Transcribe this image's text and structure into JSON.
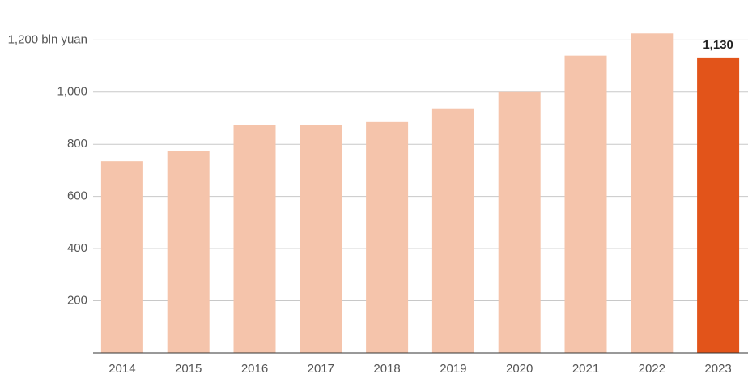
{
  "chart_data": {
    "type": "bar",
    "categories": [
      "2014",
      "2015",
      "2016",
      "2017",
      "2018",
      "2019",
      "2020",
      "2021",
      "2022",
      "2023"
    ],
    "values": [
      735,
      775,
      875,
      875,
      885,
      935,
      1000,
      1140,
      1225,
      1130
    ],
    "value_labels": [
      null,
      null,
      null,
      null,
      null,
      null,
      null,
      null,
      null,
      "1,130"
    ],
    "colors": [
      "#f5c4ab",
      "#f5c4ab",
      "#f5c4ab",
      "#f5c4ab",
      "#f5c4ab",
      "#f5c4ab",
      "#f5c4ab",
      "#f5c4ab",
      "#f5c4ab",
      "#e2541a"
    ],
    "ylim": [
      0,
      1350
    ],
    "yticks": [
      200,
      400,
      600,
      800,
      {
        "value": 1000,
        "label": "1,000"
      },
      {
        "value": 1200,
        "label": "1,200 bln yuan"
      }
    ],
    "grid": true
  }
}
